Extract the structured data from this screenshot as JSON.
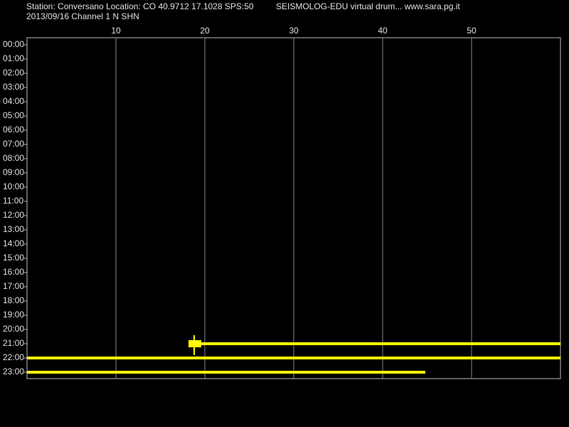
{
  "chart_data": {
    "type": "helicorder",
    "title": "Station: Conversano Location: CO 40.9712 17.1028 SPS:50",
    "subtitle": "2013/09/16  Channel 1 N SHN",
    "caption": "SEISMOLOG-EDU virtual drum... www.sara.pg.it",
    "categories": [
      "00:00",
      "01:00",
      "02:00",
      "03:00",
      "04:00",
      "05:00",
      "06:00",
      "07:00",
      "08:00",
      "09:00",
      "10:00",
      "11:00",
      "12:00",
      "13:00",
      "14:00",
      "15:00",
      "16:00",
      "17:00",
      "18:00",
      "19:00",
      "20:00",
      "21:00",
      "22:00",
      "23:00"
    ],
    "start": [
      null,
      null,
      null,
      null,
      null,
      null,
      null,
      null,
      null,
      null,
      null,
      null,
      null,
      null,
      null,
      null,
      null,
      null,
      null,
      null,
      null,
      18.2,
      0,
      0
    ],
    "end": [
      null,
      null,
      null,
      null,
      null,
      null,
      null,
      null,
      null,
      null,
      null,
      null,
      null,
      null,
      null,
      null,
      null,
      null,
      null,
      null,
      null,
      60,
      60,
      44.8
    ],
    "events": [
      null,
      null,
      null,
      null,
      null,
      null,
      null,
      null,
      null,
      null,
      null,
      null,
      null,
      null,
      null,
      null,
      null,
      null,
      null,
      null,
      null,
      18.8,
      null,
      null
    ],
    "color": "#ffff00",
    "xlim": [
      0,
      60
    ],
    "xticks": [
      10,
      20,
      30,
      40,
      50
    ],
    "grid": true
  }
}
